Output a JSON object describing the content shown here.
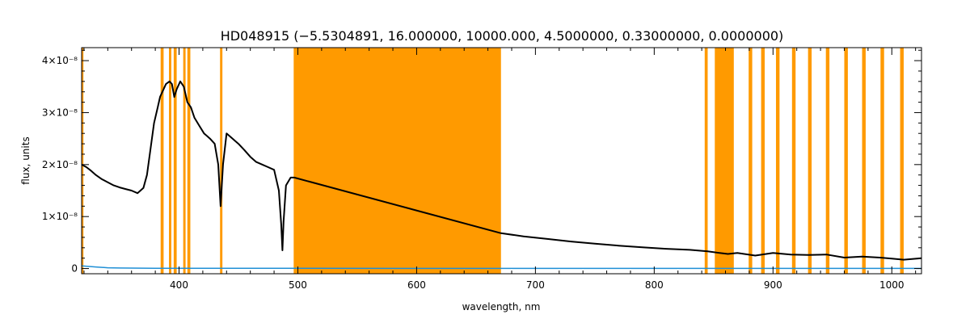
{
  "chart_data": {
    "type": "line",
    "title": "HD048915   (−5.5304891, 16.000000, 10000.000, 4.5000000, 0.33000000, 0.0000000)",
    "xlabel": "wavelength, nm",
    "ylabel": "flux, units",
    "xlim": [
      318,
      1025
    ],
    "ylim": [
      -1e-09,
      4.25e-08
    ],
    "x_ticks": [
      400,
      500,
      600,
      700,
      800,
      900,
      1000
    ],
    "y_ticks": [
      {
        "value": 0,
        "label": "0"
      },
      {
        "value": 1e-08,
        "label": "1×10⁻⁸"
      },
      {
        "value": 2e-08,
        "label": "2×10⁻⁸"
      },
      {
        "value": 3e-08,
        "label": "3×10⁻⁸"
      },
      {
        "value": 4e-08,
        "label": "4×10⁻⁸"
      }
    ],
    "colors": {
      "spectrum": "#000000",
      "error": "#1f8fd6",
      "mask": "#ff9a00"
    },
    "masked_regions": [
      [
        318,
        319.5
      ],
      [
        384.5,
        387
      ],
      [
        391.5,
        393.5
      ],
      [
        395.5,
        398
      ],
      [
        403.5,
        405.5
      ],
      [
        407,
        409.5
      ],
      [
        434.5,
        436.5
      ],
      [
        496.5,
        671
      ],
      [
        842.5,
        845
      ],
      [
        851,
        867
      ],
      [
        879.5,
        882.5
      ],
      [
        890,
        893
      ],
      [
        902.5,
        905.5
      ],
      [
        916,
        919
      ],
      [
        929.5,
        932.5
      ],
      [
        944.5,
        947.5
      ],
      [
        960,
        963
      ],
      [
        975,
        978
      ],
      [
        990.5,
        993.5
      ],
      [
        1007,
        1010
      ]
    ],
    "series": [
      {
        "role": "spectrum",
        "x": [
          318,
          322,
          326,
          330,
          335,
          340,
          345,
          350,
          355,
          360,
          365,
          370,
          373,
          376,
          379,
          382,
          384,
          386,
          389,
          392,
          394,
          396,
          398,
          401,
          404,
          407,
          410,
          413,
          417,
          421,
          426,
          430,
          433,
          435,
          437,
          440,
          445,
          450,
          455,
          460,
          465,
          470,
          475,
          480,
          484,
          486,
          487,
          488,
          490,
          494,
          497,
          671,
          690,
          710,
          730,
          750,
          770,
          790,
          810,
          830,
          845,
          855,
          862,
          870,
          885,
          900,
          915,
          930,
          945,
          960,
          975,
          990,
          1000,
          1010,
          1025
        ],
        "y": [
          2e-08,
          1.95e-08,
          1.88e-08,
          1.8e-08,
          1.72e-08,
          1.66e-08,
          1.6e-08,
          1.56e-08,
          1.53e-08,
          1.5e-08,
          1.45e-08,
          1.55e-08,
          1.8e-08,
          2.3e-08,
          2.8e-08,
          3.1e-08,
          3.3e-08,
          3.4e-08,
          3.55e-08,
          3.6e-08,
          3.55e-08,
          3.3e-08,
          3.45e-08,
          3.6e-08,
          3.5e-08,
          3.2e-08,
          3.1e-08,
          2.9e-08,
          2.75e-08,
          2.6e-08,
          2.5e-08,
          2.4e-08,
          2e-08,
          1.2e-08,
          2e-08,
          2.6e-08,
          2.5e-08,
          2.4e-08,
          2.28e-08,
          2.15e-08,
          2.05e-08,
          2e-08,
          1.95e-08,
          1.9e-08,
          1.5e-08,
          8.5e-09,
          3.5e-09,
          9e-09,
          1.6e-08,
          1.75e-08,
          1.75e-08,
          6.8e-09,
          6.2e-09,
          5.7e-09,
          5.2e-09,
          4.8e-09,
          4.4e-09,
          4.1e-09,
          3.8e-09,
          3.6e-09,
          3.3e-09,
          3e-09,
          2.8e-09,
          3e-09,
          2.5e-09,
          3e-09,
          2.7e-09,
          2.6e-09,
          2.7e-09,
          2.1e-09,
          2.3e-09,
          2.1e-09,
          1.9e-09,
          1.7e-09,
          2e-09
        ]
      },
      {
        "role": "error",
        "x": [
          318,
          330,
          340,
          350,
          360,
          380,
          400,
          450,
          497,
          671,
          750,
          850,
          950,
          1025
        ],
        "y": [
          5e-10,
          3e-10,
          1.5e-10,
          1e-10,
          8e-11,
          6e-11,
          5e-11,
          4e-11,
          4e-11,
          2e-11,
          2e-11,
          2e-11,
          2e-11,
          2e-11
        ]
      }
    ]
  }
}
